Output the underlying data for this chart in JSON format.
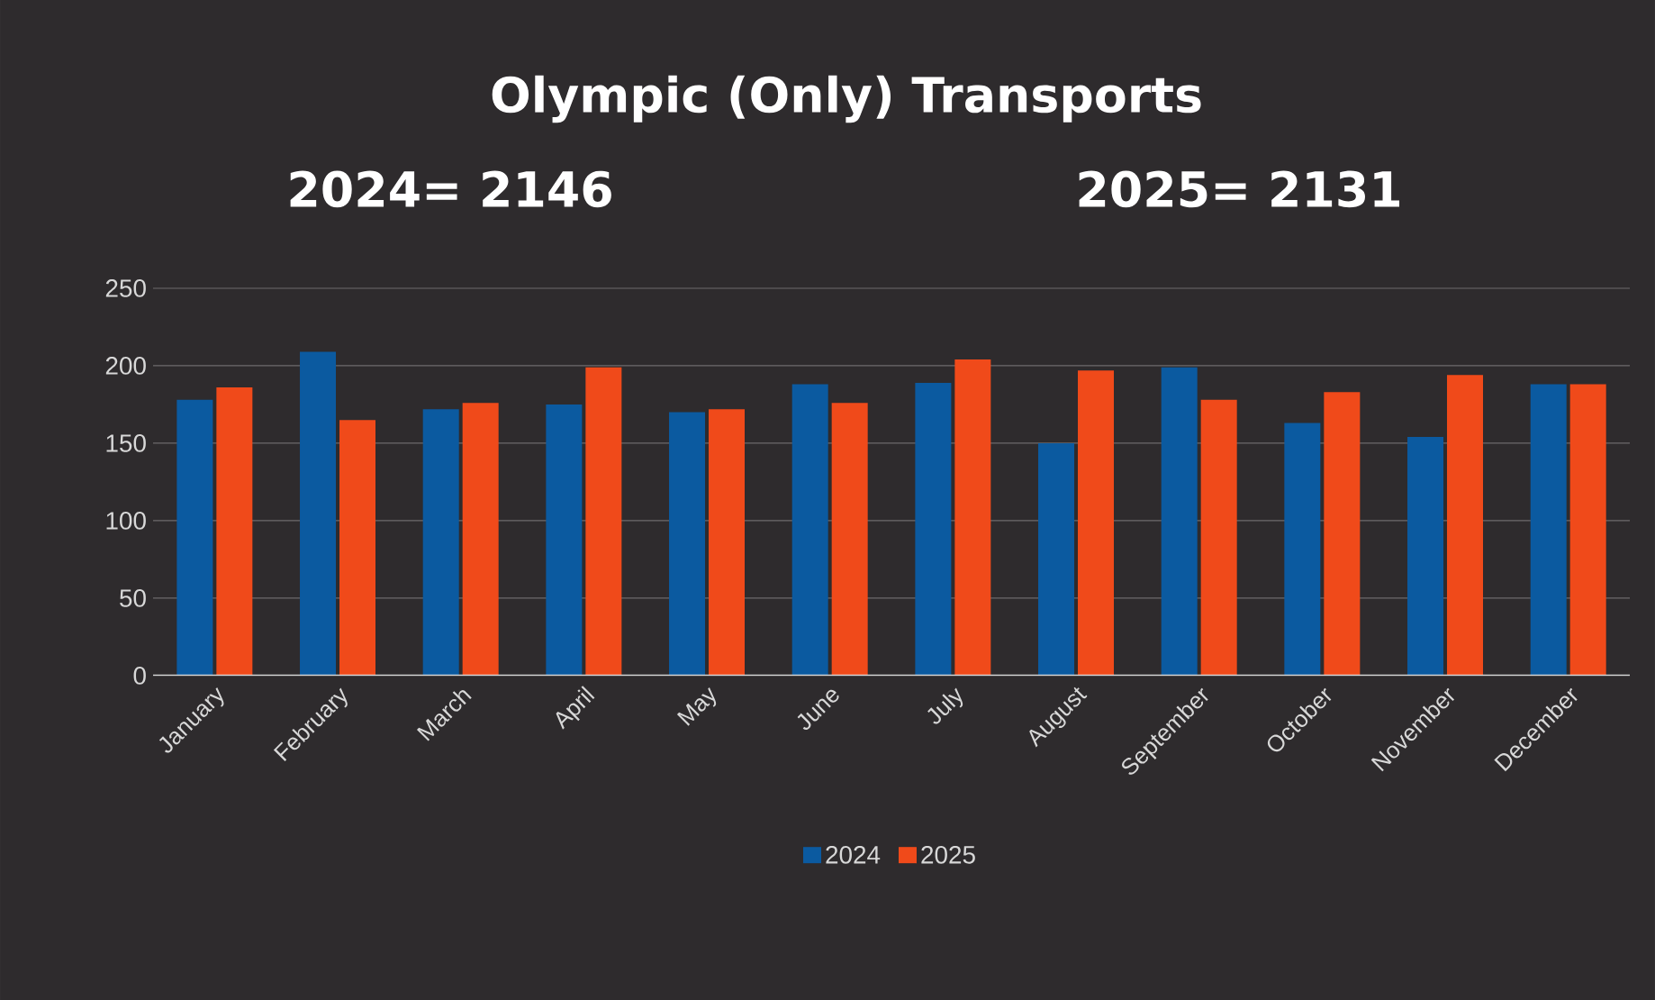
{
  "chart_data": {
    "type": "bar",
    "title": "Olympic (Only) Transports",
    "annotations": [
      "2024= 2146",
      "2025= 2131"
    ],
    "categories": [
      "January",
      "February",
      "March",
      "April",
      "May",
      "June",
      "July",
      "August",
      "September",
      "October",
      "November",
      "December"
    ],
    "series": [
      {
        "name": "2024",
        "color": "#0b5aa0",
        "values": [
          178,
          209,
          172,
          175,
          170,
          188,
          189,
          150,
          199,
          163,
          154,
          188
        ]
      },
      {
        "name": "2025",
        "color": "#f04a1a",
        "values": [
          186,
          165,
          176,
          199,
          172,
          176,
          204,
          197,
          178,
          183,
          194,
          188
        ]
      }
    ],
    "ylim": [
      0,
      250
    ],
    "yticks": [
      0,
      50,
      100,
      150,
      200,
      250
    ],
    "grid": "y",
    "legend": "bottom"
  }
}
